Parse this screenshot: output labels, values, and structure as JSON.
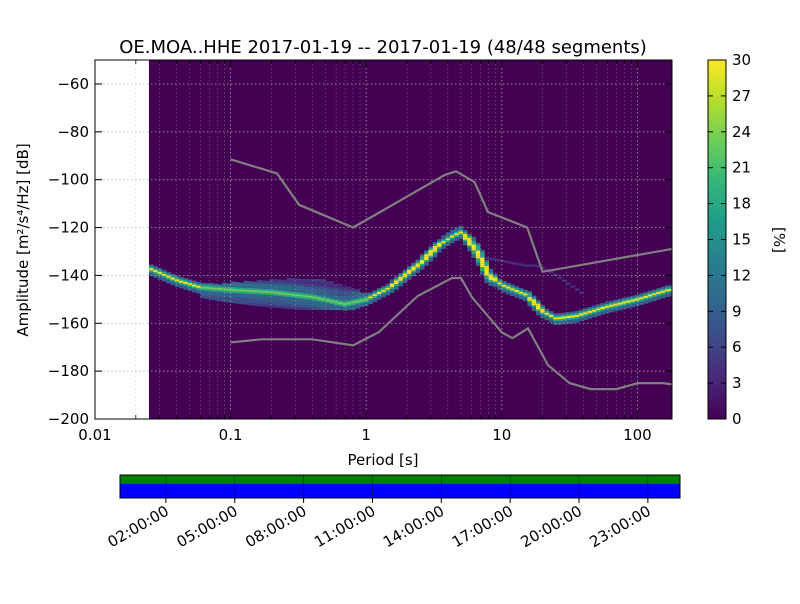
{
  "chart_data": {
    "type": "heatmap",
    "title": "OE.MOA..HHE   2017-01-19 -- 2017-01-19  (48/48 segments)",
    "xlabel": "Period [s]",
    "ylabel": "Amplitude [m²/s⁴/Hz] [dB]",
    "xscale": "log",
    "xlim": [
      0.01,
      180
    ],
    "ylim": [
      -200,
      -50
    ],
    "xticks": [
      0.01,
      0.1,
      1,
      10,
      100
    ],
    "xtick_labels": [
      "0.01",
      "0.1",
      "1",
      "10",
      "100"
    ],
    "yticks": [
      -60,
      -80,
      -100,
      -120,
      -140,
      -160,
      -180,
      -200
    ],
    "ytick_labels": [
      "−60",
      "−80",
      "−100",
      "−120",
      "−140",
      "−160",
      "−180",
      "−200"
    ],
    "grid": true,
    "data_start_period": 0.025,
    "colorbar": {
      "label": "[%]",
      "colormap": "viridis",
      "range": [
        0,
        30
      ],
      "ticks": [
        0,
        3,
        6,
        9,
        12,
        15,
        18,
        21,
        24,
        27,
        30
      ],
      "tick_labels": [
        "0",
        "3",
        "6",
        "9",
        "12",
        "15",
        "18",
        "21",
        "24",
        "27",
        "30"
      ]
    },
    "series": [
      {
        "name": "high noise model",
        "color": "#808080",
        "x": [
          0.1,
          0.22,
          0.32,
          0.8,
          3.8,
          4.6,
          6.3,
          7.9,
          15.4,
          20,
          354
        ],
        "y": [
          -91.5,
          -97.4,
          -110.5,
          -120,
          -98,
          -96.5,
          -101,
          -113.5,
          -120,
          -138.5,
          -126
        ]
      },
      {
        "name": "low noise model",
        "color": "#808080",
        "x": [
          0.1,
          0.17,
          0.4,
          0.8,
          1.24,
          2.4,
          4.3,
          5,
          6,
          10,
          12,
          15.6,
          21.9,
          31.6,
          45,
          70,
          101,
          154,
          328
        ],
        "y": [
          -168,
          -166.7,
          -166.7,
          -169.2,
          -163.7,
          -148.6,
          -141.1,
          -141.1,
          -149,
          -163.8,
          -166.2,
          -162.1,
          -177.5,
          -185,
          -187.5,
          -187.5,
          -185,
          -185,
          -187.5
        ]
      }
    ],
    "mode_curve": {
      "name": "dominant PSD (mode)",
      "x": [
        0.025,
        0.04,
        0.06,
        0.1,
        0.2,
        0.4,
        0.7,
        1.0,
        1.5,
        2.5,
        3.5,
        4.5,
        5.0,
        6.0,
        7.0,
        8.0,
        10,
        15,
        20,
        25,
        35,
        60,
        100,
        170
      ],
      "y": [
        -137,
        -142,
        -145,
        -146,
        -147,
        -149,
        -152,
        -150,
        -145,
        -135,
        -127,
        -123,
        -122,
        -127,
        -133,
        -140,
        -144,
        -148,
        -155,
        -158,
        -157,
        -153,
        -150,
        -146
      ]
    },
    "spread_region": {
      "name": "spread of individual segment PSDs",
      "x": [
        0.06,
        0.1,
        0.2,
        0.35,
        0.5,
        0.8,
        1.0
      ],
      "y_low": [
        -149,
        -151,
        -153,
        -154,
        -154,
        -154,
        -152
      ],
      "y_high": [
        -144,
        -143,
        -142,
        -141,
        -142,
        -145,
        -148
      ]
    },
    "faint_branch": {
      "name": "faint secondary PSD branch",
      "x": [
        6,
        8,
        10,
        12,
        15,
        18,
        22,
        30,
        40
      ],
      "y": [
        -132,
        -133,
        -134,
        -135,
        -136,
        -136,
        -138,
        -143,
        -148
      ]
    },
    "data_availability": {
      "tick_labels": [
        "02:00:00",
        "05:00:00",
        "08:00:00",
        "11:00:00",
        "14:00:00",
        "17:00:00",
        "20:00:00",
        "23:00:00"
      ],
      "tick_hours": [
        2,
        5,
        8,
        11,
        14,
        17,
        20,
        23
      ],
      "range_hours": [
        0,
        24.4
      ],
      "bars": [
        {
          "name": "data available",
          "color": "#008000",
          "start_hour": 0,
          "end_hour": 24.4
        },
        {
          "name": "gaps / used",
          "color": "#0000ff",
          "start_hour": 0,
          "end_hour": 24.4
        }
      ]
    }
  }
}
